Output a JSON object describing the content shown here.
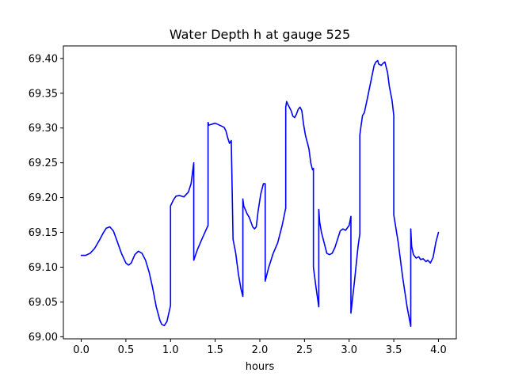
{
  "chart_data": {
    "type": "line",
    "title": "Water Depth h at gauge 525",
    "xlabel": "hours",
    "ylabel": "",
    "xlim": [
      -0.2,
      4.2
    ],
    "ylim": [
      68.997,
      69.418
    ],
    "xticks": [
      0.0,
      0.5,
      1.0,
      1.5,
      2.0,
      2.5,
      3.0,
      3.5,
      4.0
    ],
    "xtick_labels": [
      "0.0",
      "0.5",
      "1.0",
      "1.5",
      "2.0",
      "2.5",
      "3.0",
      "3.5",
      "4.0"
    ],
    "yticks": [
      69.0,
      69.05,
      69.1,
      69.15,
      69.2,
      69.25,
      69.3,
      69.35,
      69.4
    ],
    "ytick_labels": [
      "69.00",
      "69.05",
      "69.10",
      "69.15",
      "69.20",
      "69.25",
      "69.30",
      "69.35",
      "69.40"
    ],
    "grid": false,
    "series": [
      {
        "color": "#0000ff",
        "x": [
          0.0,
          0.05,
          0.1,
          0.15,
          0.2,
          0.25,
          0.28,
          0.32,
          0.36,
          0.4,
          0.45,
          0.5,
          0.53,
          0.56,
          0.6,
          0.64,
          0.68,
          0.72,
          0.76,
          0.8,
          0.84,
          0.88,
          0.9,
          0.93,
          0.96,
          1.0,
          1.0,
          1.03,
          1.06,
          1.1,
          1.15,
          1.2,
          1.23,
          1.26,
          1.26,
          1.3,
          1.35,
          1.42,
          1.42,
          1.43,
          1.45,
          1.5,
          1.55,
          1.6,
          1.62,
          1.64,
          1.66,
          1.68,
          1.7,
          1.7,
          1.73,
          1.76,
          1.79,
          1.81,
          1.81,
          1.82,
          1.84,
          1.86,
          1.88,
          1.9,
          1.92,
          1.94,
          1.96,
          1.98,
          2.01,
          2.04,
          2.06,
          2.06,
          2.1,
          2.15,
          2.2,
          2.25,
          2.29,
          2.29,
          2.3,
          2.31,
          2.33,
          2.35,
          2.37,
          2.39,
          2.41,
          2.43,
          2.45,
          2.47,
          2.49,
          2.51,
          2.53,
          2.55,
          2.57,
          2.59,
          2.6,
          2.6,
          2.63,
          2.66,
          2.66,
          2.67,
          2.69,
          2.71,
          2.73,
          2.75,
          2.78,
          2.81,
          2.84,
          2.87,
          2.9,
          2.93,
          2.96,
          3.0,
          3.02,
          3.02,
          3.06,
          3.1,
          3.12,
          3.12,
          3.13,
          3.15,
          3.17,
          3.2,
          3.24,
          3.28,
          3.3,
          3.32,
          3.33,
          3.36,
          3.38,
          3.4,
          3.43,
          3.45,
          3.48,
          3.5,
          3.5,
          3.55,
          3.6,
          3.65,
          3.69,
          3.69,
          3.7,
          3.72,
          3.75,
          3.78,
          3.8,
          3.83,
          3.86,
          3.88,
          3.91,
          3.94,
          3.97,
          4.0
        ],
        "y": [
          69.117,
          69.117,
          69.12,
          69.127,
          69.138,
          69.15,
          69.156,
          69.158,
          69.152,
          69.138,
          69.12,
          69.106,
          69.103,
          69.106,
          69.118,
          69.123,
          69.12,
          69.11,
          69.093,
          69.07,
          69.043,
          69.024,
          69.018,
          69.016,
          69.022,
          69.045,
          69.188,
          69.196,
          69.202,
          69.203,
          69.201,
          69.208,
          69.22,
          69.25,
          69.11,
          69.125,
          69.14,
          69.16,
          69.308,
          69.304,
          69.305,
          69.307,
          69.304,
          69.301,
          69.296,
          69.286,
          69.278,
          69.282,
          69.14,
          69.14,
          69.12,
          69.09,
          69.068,
          69.058,
          69.198,
          69.188,
          69.182,
          69.176,
          69.172,
          69.165,
          69.158,
          69.155,
          69.158,
          69.18,
          69.205,
          69.22,
          69.22,
          69.08,
          69.1,
          69.12,
          69.135,
          69.16,
          69.185,
          69.33,
          69.338,
          69.335,
          69.33,
          69.325,
          69.317,
          69.315,
          69.32,
          69.327,
          69.33,
          69.325,
          69.305,
          69.29,
          69.28,
          69.27,
          69.25,
          69.24,
          69.242,
          69.1,
          69.07,
          69.043,
          69.183,
          69.165,
          69.15,
          69.14,
          69.13,
          69.12,
          69.118,
          69.12,
          69.128,
          69.14,
          69.152,
          69.155,
          69.153,
          69.16,
          69.173,
          69.034,
          69.08,
          69.13,
          69.148,
          69.29,
          69.3,
          69.318,
          69.322,
          69.34,
          69.365,
          69.39,
          69.395,
          69.397,
          69.392,
          69.39,
          69.393,
          69.395,
          69.38,
          69.36,
          69.34,
          69.318,
          69.175,
          69.135,
          69.085,
          69.042,
          69.015,
          69.155,
          69.13,
          69.118,
          69.113,
          69.115,
          69.111,
          69.112,
          69.108,
          69.11,
          69.106,
          69.114,
          69.135,
          69.15
        ]
      }
    ]
  }
}
